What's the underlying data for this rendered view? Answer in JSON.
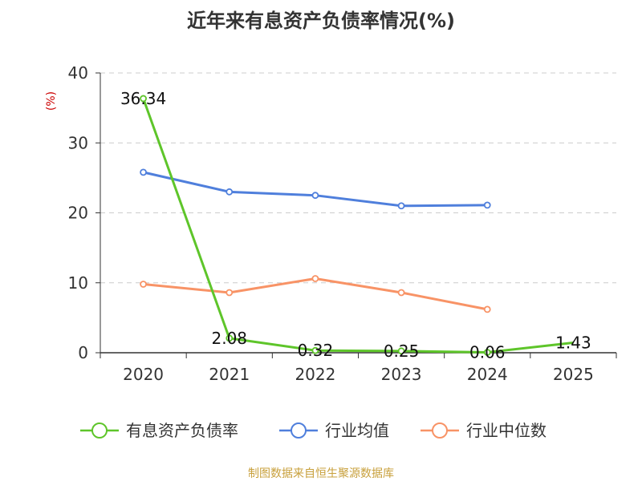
{
  "chart_data": {
    "type": "line",
    "title": "近年来有息资产负债率情况(%)",
    "ylabel": "(%)",
    "xlabel": "",
    "categories": [
      "2020",
      "2021",
      "2022",
      "2023",
      "2024",
      "2025"
    ],
    "ylim": [
      0,
      40
    ],
    "yticks": [
      0,
      10,
      20,
      30,
      40
    ],
    "grid": true,
    "legend_position": "bottom",
    "series": [
      {
        "name": "有息资产负债率",
        "color": "#5ec52a",
        "values": [
          36.34,
          2.08,
          0.32,
          0.25,
          0.06,
          1.43
        ],
        "labels": [
          "36.34",
          "2.08",
          "0.32",
          "0.25",
          "0.06",
          "1.43"
        ]
      },
      {
        "name": "行业均值",
        "color": "#4f7fdc",
        "values": [
          25.8,
          23.0,
          22.5,
          21.0,
          21.1,
          null
        ]
      },
      {
        "name": "行业中位数",
        "color": "#f89366",
        "values": [
          9.8,
          8.6,
          10.6,
          8.6,
          6.2,
          null
        ]
      }
    ],
    "source": "制图数据来自恒生聚源数据库"
  }
}
